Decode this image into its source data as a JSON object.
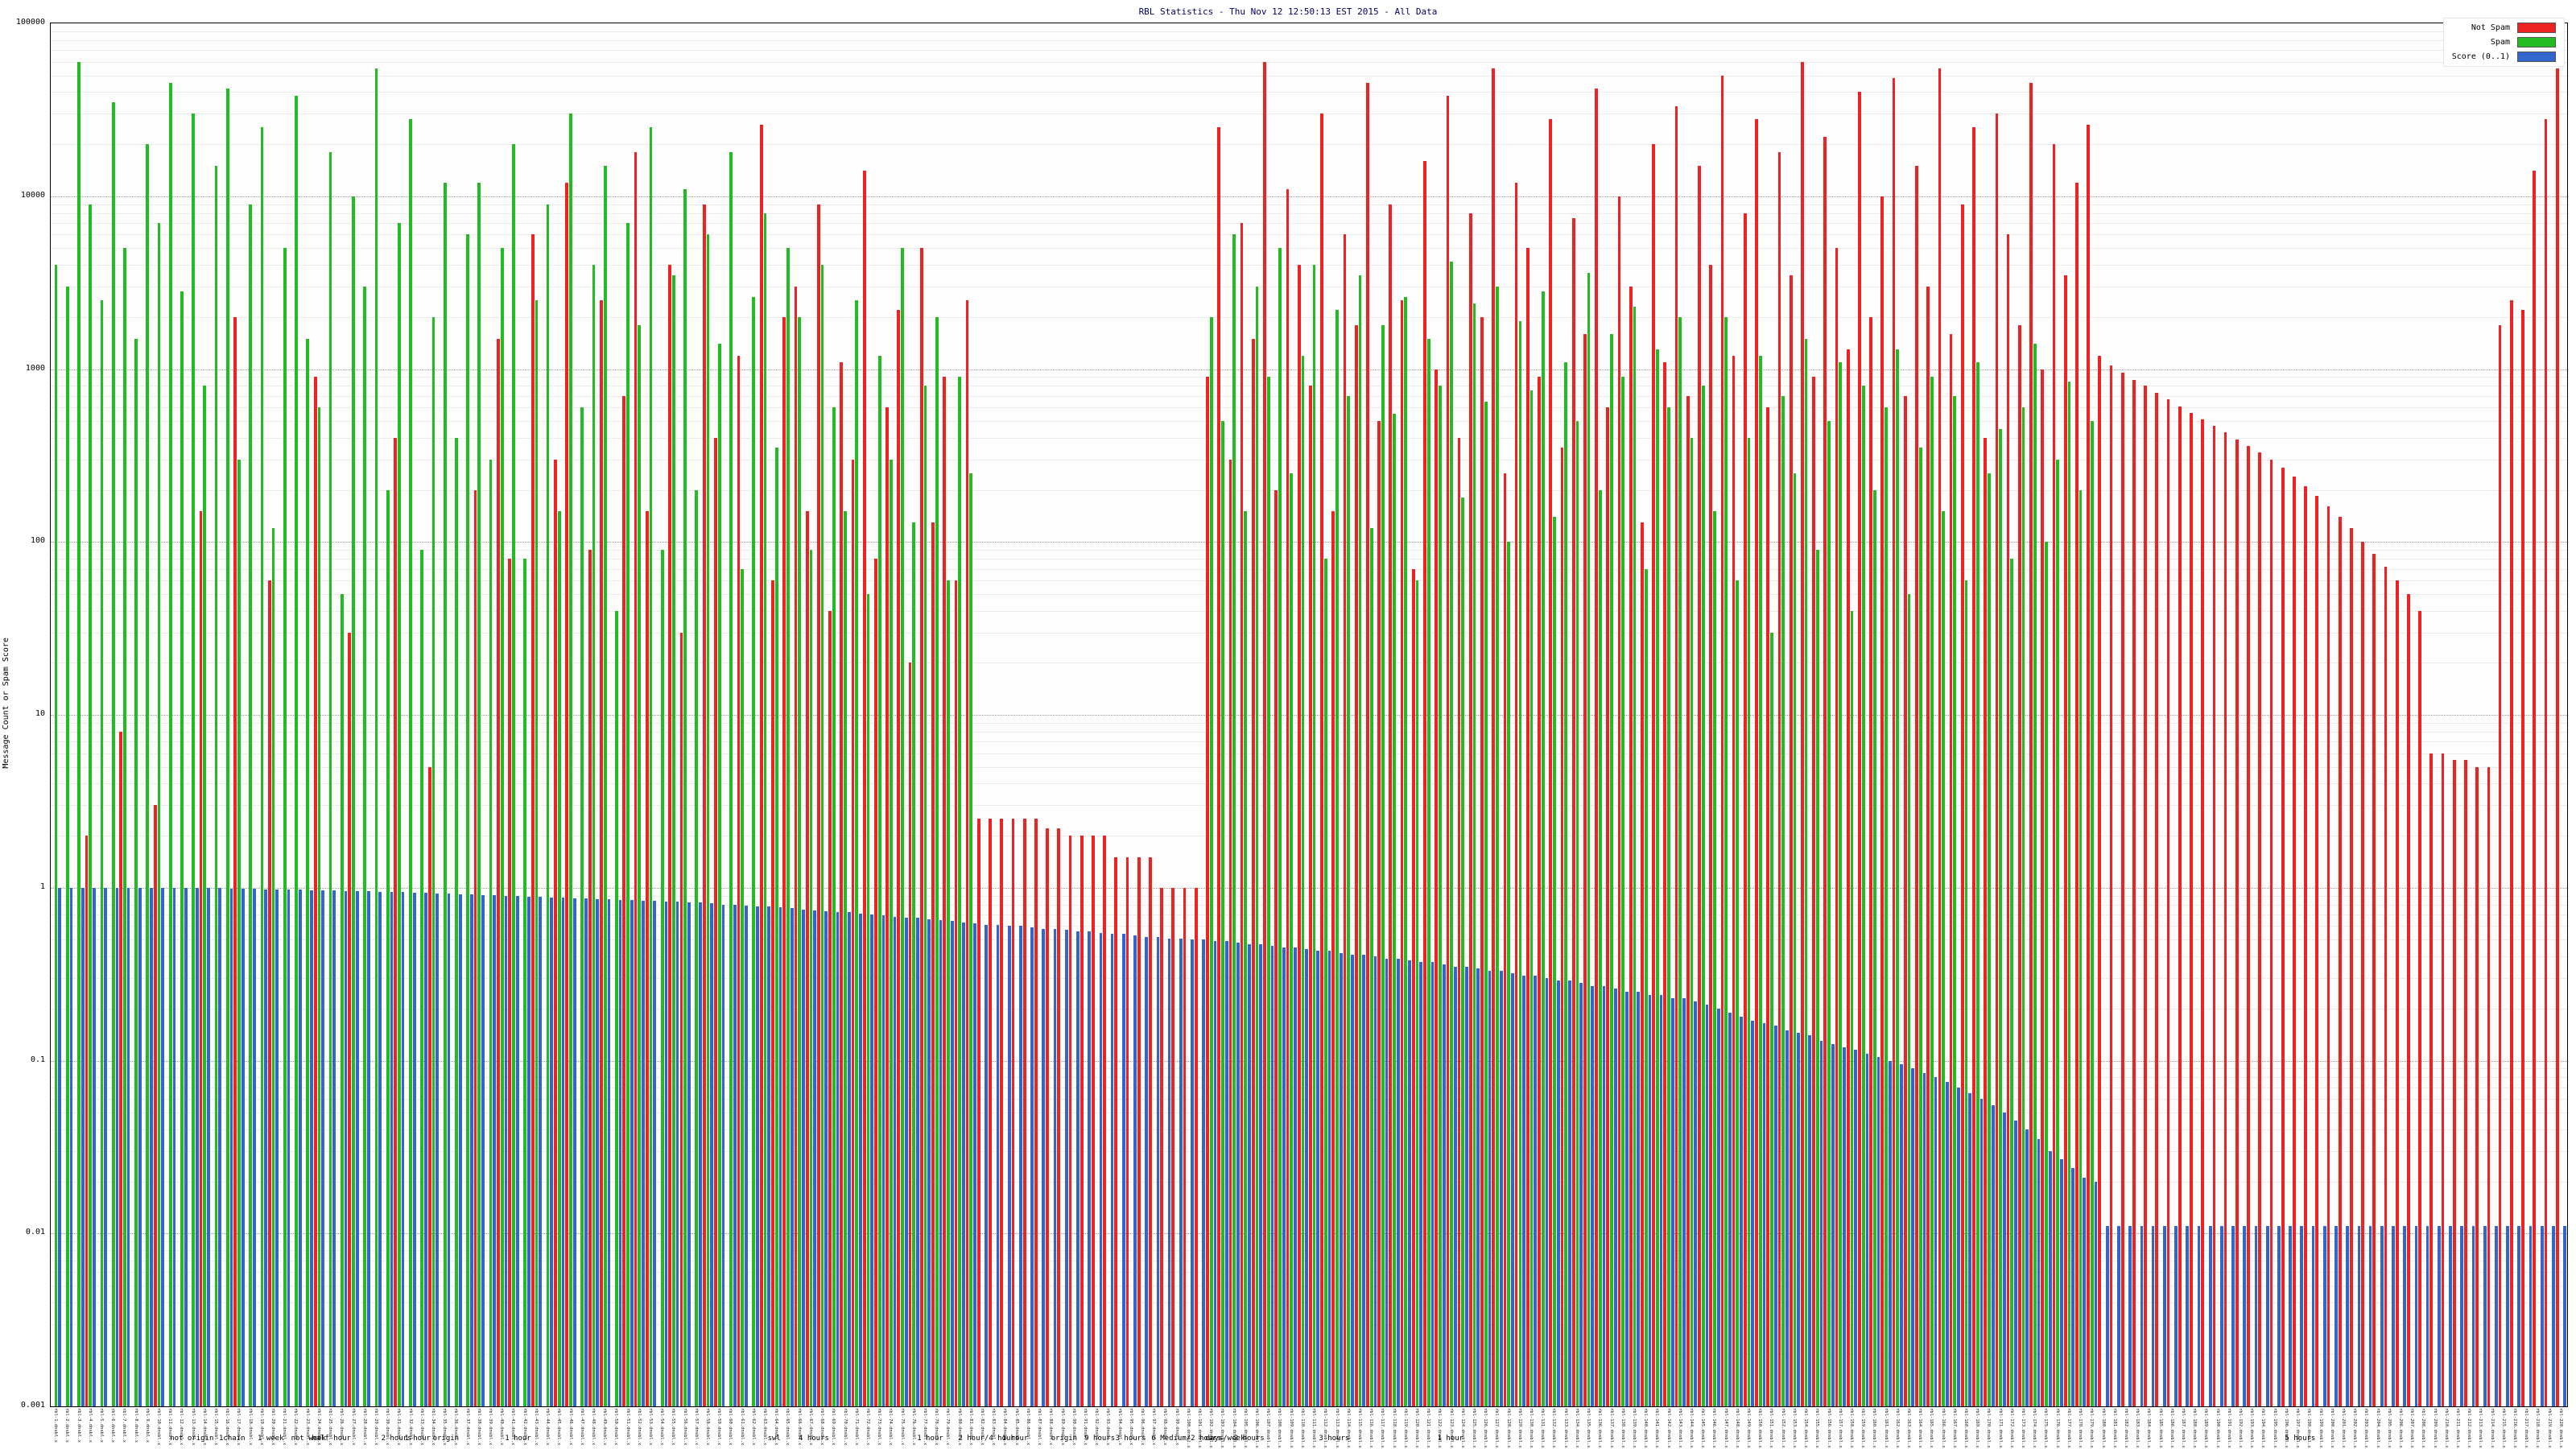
{
  "chart_data": {
    "type": "bar",
    "title": "RBL Statistics - Thu Nov 12 12:50:13 EST 2015 - All Data",
    "ylabel": "Message Count or Spam Score",
    "yscale": "log",
    "ylim": [
      0.001,
      100000
    ],
    "ytick_labels": [
      "100000",
      "10000",
      "1000",
      "100",
      "10",
      "1",
      "0.1",
      "0.01",
      "0.001"
    ],
    "grid": true,
    "legend_position": "top-right",
    "label_suffix": ".dnsbl.x",
    "categories": [
      "rbl-1",
      "rbl-2",
      "rbl-3",
      "rbl-4",
      "rbl-5",
      "rbl-6",
      "rbl-7",
      "rbl-8",
      "rbl-9",
      "rbl-10",
      "rbl-11",
      "rbl-12",
      "rbl-13",
      "rbl-14",
      "rbl-15",
      "rbl-16",
      "rbl-17",
      "rbl-18",
      "rbl-19",
      "rbl-20",
      "rbl-21",
      "rbl-22",
      "rbl-23",
      "rbl-24",
      "rbl-25",
      "rbl-26",
      "rbl-27",
      "rbl-28",
      "rbl-29",
      "rbl-30",
      "rbl-31",
      "rbl-32",
      "rbl-33",
      "rbl-34",
      "rbl-35",
      "rbl-36",
      "rbl-37",
      "rbl-38",
      "rbl-39",
      "rbl-40",
      "rbl-41",
      "rbl-42",
      "rbl-43",
      "rbl-44",
      "rbl-45",
      "rbl-46",
      "rbl-47",
      "rbl-48",
      "rbl-49",
      "rbl-50",
      "rbl-51",
      "rbl-52",
      "rbl-53",
      "rbl-54",
      "rbl-55",
      "rbl-56",
      "rbl-57",
      "rbl-58",
      "rbl-59",
      "rbl-60",
      "rbl-61",
      "rbl-62",
      "rbl-63",
      "rbl-64",
      "rbl-65",
      "rbl-66",
      "rbl-67",
      "rbl-68",
      "rbl-69",
      "rbl-70",
      "rbl-71",
      "rbl-72",
      "rbl-73",
      "rbl-74",
      "rbl-75",
      "rbl-76",
      "rbl-77",
      "rbl-78",
      "rbl-79",
      "rbl-80",
      "rbl-81",
      "rbl-82",
      "rbl-83",
      "rbl-84",
      "rbl-85",
      "rbl-86",
      "rbl-87",
      "rbl-88",
      "rbl-89",
      "rbl-90",
      "rbl-91",
      "rbl-92",
      "rbl-93",
      "rbl-94",
      "rbl-95",
      "rbl-96",
      "rbl-97",
      "rbl-98",
      "rbl-99",
      "rbl-100",
      "rbl-101",
      "rbl-102",
      "rbl-103",
      "rbl-104",
      "rbl-105",
      "rbl-106",
      "rbl-107",
      "rbl-108",
      "rbl-109",
      "rbl-110",
      "rbl-111",
      "rbl-112",
      "rbl-113",
      "rbl-114",
      "rbl-115",
      "rbl-116",
      "rbl-117",
      "rbl-118",
      "rbl-119",
      "rbl-120",
      "rbl-121",
      "rbl-122",
      "rbl-123",
      "rbl-124",
      "rbl-125",
      "rbl-126",
      "rbl-127",
      "rbl-128",
      "rbl-129",
      "rbl-130",
      "rbl-131",
      "rbl-132",
      "rbl-133",
      "rbl-134",
      "rbl-135",
      "rbl-136",
      "rbl-137",
      "rbl-138",
      "rbl-139",
      "rbl-140",
      "rbl-141",
      "rbl-142",
      "rbl-143",
      "rbl-144",
      "rbl-145",
      "rbl-146",
      "rbl-147",
      "rbl-148",
      "rbl-149",
      "rbl-150",
      "rbl-151",
      "rbl-152",
      "rbl-153",
      "rbl-154",
      "rbl-155",
      "rbl-156",
      "rbl-157",
      "rbl-158",
      "rbl-159",
      "rbl-160",
      "rbl-161",
      "rbl-162",
      "rbl-163",
      "rbl-164",
      "rbl-165",
      "rbl-166",
      "rbl-167",
      "rbl-168",
      "rbl-169",
      "rbl-170",
      "rbl-171",
      "rbl-172",
      "rbl-173",
      "rbl-174",
      "rbl-175",
      "rbl-176",
      "rbl-177",
      "rbl-178",
      "rbl-179",
      "rbl-180",
      "rbl-181",
      "rbl-182",
      "rbl-183",
      "rbl-184",
      "rbl-185",
      "rbl-186",
      "rbl-187",
      "rbl-188",
      "rbl-189",
      "rbl-190",
      "rbl-191",
      "rbl-192",
      "rbl-193",
      "rbl-194",
      "rbl-195",
      "rbl-196",
      "rbl-197",
      "rbl-198",
      "rbl-199",
      "rbl-200",
      "rbl-201",
      "rbl-202",
      "rbl-203",
      "rbl-204",
      "rbl-205",
      "rbl-206",
      "rbl-207",
      "rbl-208",
      "rbl-209",
      "rbl-210",
      "rbl-211",
      "rbl-212",
      "rbl-213",
      "rbl-214",
      "rbl-215",
      "rbl-216",
      "rbl-217",
      "rbl-218",
      "rbl-219",
      "rbl-220"
    ],
    "series": [
      {
        "name": "Not Spam",
        "color": "#ee2222",
        "values": [
          0,
          0,
          0,
          2,
          0,
          0,
          8,
          0,
          0,
          3,
          0,
          0,
          0,
          150,
          0,
          0,
          2000,
          0,
          0,
          60,
          0,
          0,
          0,
          900,
          0,
          0,
          30,
          0,
          0,
          0,
          400,
          0,
          0,
          5,
          0,
          0,
          0,
          200,
          0,
          1500,
          80,
          0,
          6000,
          0,
          300,
          12000,
          0,
          90,
          2500,
          0,
          700,
          18000,
          150,
          0,
          4000,
          30,
          0,
          9000,
          400,
          0,
          1200,
          0,
          26000,
          60,
          2000,
          3000,
          150,
          9000,
          40,
          1100,
          300,
          14000,
          80,
          600,
          2200,
          20,
          5000,
          130,
          900,
          60,
          2500,
          2.5,
          2.5,
          2.5,
          2.5,
          2.5,
          2.5,
          2.2,
          2.2,
          2,
          2,
          2,
          2,
          1.5,
          1.5,
          1.5,
          1.5,
          1,
          1,
          1,
          1,
          900,
          25000,
          300,
          7000,
          1500,
          60000,
          200,
          11000,
          4000,
          800,
          30000,
          150,
          6000,
          1800,
          45000,
          500,
          9000,
          2500,
          70,
          16000,
          1000,
          38000,
          400,
          8000,
          2000,
          55000,
          250,
          12000,
          5000,
          900,
          28000,
          350,
          7500,
          1600,
          42000,
          600,
          10000,
          3000,
          130,
          20000,
          1100,
          33000,
          700,
          15000,
          4000,
          50000,
          1200,
          8000,
          28000,
          600,
          18000,
          3500,
          60000,
          900,
          22000,
          5000,
          1300,
          40000,
          2000,
          10000,
          48000,
          700,
          15000,
          3000,
          55000,
          1600,
          9000,
          25000,
          400,
          30000,
          6000,
          1800,
          45000,
          1000,
          20000,
          3500,
          12000,
          26000,
          1200,
          1050,
          950,
          870,
          800,
          730,
          670,
          610,
          560,
          510,
          470,
          430,
          390,
          360,
          330,
          300,
          270,
          240,
          210,
          185,
          160,
          140,
          120,
          100,
          85,
          72,
          60,
          50,
          40,
          6,
          6,
          5.5,
          5.5,
          5,
          5,
          1800,
          2500,
          2200,
          14000,
          28000,
          55000
        ]
      },
      {
        "name": "Spam",
        "color": "#22bb22",
        "values": [
          4000,
          3000,
          60000,
          9000,
          2500,
          35000,
          5000,
          1500,
          20000,
          7000,
          45000,
          2800,
          30000,
          800,
          15000,
          42000,
          300,
          9000,
          25000,
          120,
          5000,
          38000,
          1500,
          600,
          18000,
          50,
          10000,
          3000,
          55000,
          200,
          7000,
          28000,
          90,
          2000,
          12000,
          400,
          6000,
          12000,
          300,
          5000,
          20000,
          80,
          2500,
          9000,
          150,
          30000,
          600,
          4000,
          15000,
          40,
          7000,
          1800,
          25000,
          90,
          3500,
          11000,
          200,
          6000,
          1400,
          18000,
          70,
          2600,
          8000,
          350,
          5000,
          2000,
          90,
          4000,
          600,
          150,
          2500,
          50,
          1200,
          300,
          5000,
          130,
          800,
          2000,
          60,
          900,
          250,
          0,
          0,
          0,
          0,
          0,
          0,
          0,
          0,
          0,
          0,
          0,
          0,
          0,
          0,
          0,
          0,
          0,
          0,
          0,
          0,
          2000,
          500,
          6000,
          150,
          3000,
          900,
          5000,
          250,
          1200,
          4000,
          80,
          2200,
          700,
          3500,
          120,
          1800,
          550,
          2600,
          60,
          1500,
          800,
          4200,
          180,
          2400,
          650,
          3000,
          100,
          1900,
          750,
          2800,
          140,
          1100,
          500,
          3600,
          200,
          1600,
          900,
          2300,
          70,
          1300,
          600,
          2000,
          400,
          800,
          150,
          2000,
          60,
          400,
          1200,
          30,
          700,
          250,
          1500,
          90,
          500,
          1100,
          40,
          800,
          200,
          600,
          1300,
          50,
          350,
          900,
          150,
          700,
          60,
          1100,
          250,
          450,
          80,
          600,
          1400,
          100,
          300,
          850,
          200,
          500,
          0,
          0,
          0,
          0,
          0,
          0,
          0,
          0,
          0,
          0,
          0,
          0,
          0,
          0,
          0,
          0,
          0,
          0,
          0,
          0,
          0,
          0,
          0,
          0,
          0,
          0,
          0,
          0,
          0,
          0,
          0,
          0,
          0,
          0,
          0,
          0,
          0,
          0,
          0,
          0,
          0
        ]
      },
      {
        "name": "Score (0..1)",
        "color": "#3366cc",
        "values": [
          1,
          1,
          1,
          1,
          1,
          1,
          1,
          1,
          1,
          1,
          1,
          1,
          1,
          1,
          1,
          0.99,
          0.99,
          0.99,
          0.98,
          0.98,
          0.98,
          0.98,
          0.97,
          0.97,
          0.97,
          0.96,
          0.96,
          0.96,
          0.95,
          0.95,
          0.95,
          0.94,
          0.94,
          0.93,
          0.93,
          0.92,
          0.92,
          0.91,
          0.91,
          0.9,
          0.9,
          0.89,
          0.89,
          0.88,
          0.88,
          0.87,
          0.87,
          0.86,
          0.86,
          0.85,
          0.85,
          0.84,
          0.84,
          0.83,
          0.83,
          0.82,
          0.82,
          0.81,
          0.8,
          0.8,
          0.79,
          0.78,
          0.78,
          0.77,
          0.76,
          0.75,
          0.74,
          0.73,
          0.72,
          0.72,
          0.71,
          0.7,
          0.69,
          0.68,
          0.67,
          0.67,
          0.66,
          0.65,
          0.64,
          0.63,
          0.62,
          0.61,
          0.61,
          0.6,
          0.6,
          0.59,
          0.58,
          0.58,
          0.57,
          0.56,
          0.56,
          0.55,
          0.54,
          0.54,
          0.53,
          0.52,
          0.52,
          0.51,
          0.51,
          0.5,
          0.5,
          0.49,
          0.49,
          0.48,
          0.47,
          0.47,
          0.46,
          0.45,
          0.45,
          0.44,
          0.43,
          0.43,
          0.42,
          0.41,
          0.41,
          0.4,
          0.39,
          0.39,
          0.38,
          0.37,
          0.37,
          0.36,
          0.35,
          0.35,
          0.34,
          0.33,
          0.33,
          0.32,
          0.31,
          0.31,
          0.3,
          0.29,
          0.29,
          0.28,
          0.27,
          0.27,
          0.26,
          0.25,
          0.25,
          0.24,
          0.24,
          0.23,
          0.23,
          0.22,
          0.21,
          0.2,
          0.19,
          0.18,
          0.17,
          0.165,
          0.16,
          0.15,
          0.145,
          0.14,
          0.13,
          0.125,
          0.12,
          0.115,
          0.11,
          0.105,
          0.1,
          0.095,
          0.09,
          0.085,
          0.08,
          0.075,
          0.07,
          0.065,
          0.06,
          0.055,
          0.05,
          0.045,
          0.04,
          0.035,
          0.03,
          0.027,
          0.024,
          0.021,
          0.02,
          0.011,
          0.011,
          0.011,
          0.011,
          0.011,
          0.011,
          0.011,
          0.011,
          0.011,
          0.011,
          0.011,
          0.011,
          0.011,
          0.011,
          0.011,
          0.011,
          0.011,
          0.011,
          0.011,
          0.011,
          0.011,
          0.011,
          0.011,
          0.011,
          0.011,
          0.011,
          0.011,
          0.011,
          0.011,
          0.011,
          0.011,
          0.011,
          0.011,
          0.011,
          0.011,
          0.011,
          0.011,
          0.011,
          0.011,
          0.011,
          0.011
        ]
      }
    ],
    "axis_annotations": [
      {
        "x": 0.066,
        "text": "not origin"
      },
      {
        "x": 0.085,
        "text": "1chain"
      },
      {
        "x": 0.1,
        "text": "1 week"
      },
      {
        "x": 0.113,
        "text": "not week"
      },
      {
        "x": 0.121,
        "text": "half hour"
      },
      {
        "x": 0.148,
        "text": "2 hours"
      },
      {
        "x": 0.157,
        "text": "1 hour"
      },
      {
        "x": 0.168,
        "text": "origin"
      },
      {
        "x": 0.196,
        "text": "1 hour"
      },
      {
        "x": 0.298,
        "text": "swl"
      },
      {
        "x": 0.31,
        "text": "4 hours"
      },
      {
        "x": 0.356,
        "text": "1 hour"
      },
      {
        "x": 0.372,
        "text": "2 hour/4 hours"
      },
      {
        "x": 0.389,
        "text": "1 hour"
      },
      {
        "x": 0.408,
        "text": "origin"
      },
      {
        "x": 0.421,
        "text": "9 hours"
      },
      {
        "x": 0.433,
        "text": "3 hours"
      },
      {
        "x": 0.447,
        "text": "6 Medium/2 hours"
      },
      {
        "x": 0.468,
        "text": "days/week"
      },
      {
        "x": 0.479,
        "text": "2 hours"
      },
      {
        "x": 0.512,
        "text": "3 hours"
      },
      {
        "x": 0.558,
        "text": "1 hour"
      },
      {
        "x": 0.887,
        "text": "5 hours"
      }
    ]
  }
}
